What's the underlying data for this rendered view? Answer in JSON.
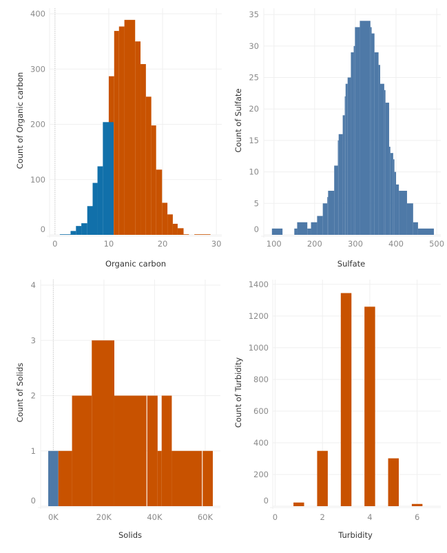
{
  "colors": {
    "orange": "#c85200",
    "blue": "#1170aa",
    "steel": "#4e79a7",
    "grid": "#efefef"
  },
  "chart_data": [
    {
      "type": "bar",
      "subtype": "histogram",
      "xlabel": "Organic carbon",
      "ylabel": "Count of Organic carbon",
      "xlim": [
        -1,
        31
      ],
      "ylim": [
        0,
        410
      ],
      "x_ticks": [
        0,
        10,
        20,
        30
      ],
      "x_tick_labels": [
        "0",
        "10",
        "20",
        "30"
      ],
      "y_ticks": [
        0,
        100,
        200,
        300,
        400
      ],
      "y_tick_labels": [
        "0",
        "100",
        "200",
        "300",
        "400"
      ],
      "grid": true,
      "zero_reference_line": true,
      "bins": [
        {
          "from": 10,
          "to": 11,
          "count": 287,
          "color": "orange"
        },
        {
          "from": 11,
          "to": 11.9,
          "count": 369,
          "color": "orange"
        },
        {
          "from": 11.9,
          "to": 12.9,
          "count": 377,
          "color": "orange"
        },
        {
          "from": 12.9,
          "to": 14.9,
          "count": 389,
          "color": "orange"
        },
        {
          "from": 14.9,
          "to": 15.9,
          "count": 350,
          "color": "orange"
        },
        {
          "from": 15.9,
          "to": 16.9,
          "count": 309,
          "color": "orange"
        },
        {
          "from": 16.9,
          "to": 17.9,
          "count": 250,
          "color": "orange"
        },
        {
          "from": 17.9,
          "to": 18.8,
          "count": 198,
          "color": "orange"
        },
        {
          "from": 18.8,
          "to": 19.9,
          "count": 118,
          "color": "orange"
        },
        {
          "from": 19.9,
          "to": 20.9,
          "count": 58,
          "color": "orange"
        },
        {
          "from": 20.9,
          "to": 21.9,
          "count": 37,
          "color": "orange"
        },
        {
          "from": 21.9,
          "to": 22.8,
          "count": 20,
          "color": "orange"
        },
        {
          "from": 22.8,
          "to": 23.9,
          "count": 12,
          "color": "orange"
        },
        {
          "from": 23.9,
          "to": 24.9,
          "count": 1,
          "color": "orange"
        },
        {
          "from": 25.9,
          "to": 28.9,
          "count": 1,
          "color": "orange"
        },
        {
          "from": 0.9,
          "to": 2.9,
          "count": 1,
          "color": "blue"
        },
        {
          "from": 2.9,
          "to": 3.9,
          "count": 7,
          "color": "blue"
        },
        {
          "from": 3.9,
          "to": 4.9,
          "count": 16,
          "color": "blue"
        },
        {
          "from": 4.9,
          "to": 6,
          "count": 21,
          "color": "blue"
        },
        {
          "from": 6,
          "to": 7,
          "count": 52,
          "color": "blue"
        },
        {
          "from": 7,
          "to": 7.9,
          "count": 94,
          "color": "blue"
        },
        {
          "from": 7.9,
          "to": 8.9,
          "count": 124,
          "color": "blue"
        },
        {
          "from": 8.9,
          "to": 10.9,
          "count": 204,
          "color": "blue"
        }
      ]
    },
    {
      "type": "bar",
      "subtype": "histogram",
      "xlabel": "Sulfate",
      "ylabel": "Count of Sulfate",
      "xlim": [
        75,
        510
      ],
      "ylim": [
        0,
        36
      ],
      "x_ticks": [
        100,
        200,
        300,
        400,
        500
      ],
      "x_tick_labels": [
        "100",
        "200",
        "300",
        "400",
        "500"
      ],
      "y_ticks": [
        0,
        5,
        10,
        15,
        20,
        25,
        30,
        35
      ],
      "y_tick_labels": [
        "0",
        "5",
        "10",
        "15",
        "20",
        "25",
        "30",
        "35"
      ],
      "grid": true,
      "bins": [
        {
          "from": 95,
          "to": 121,
          "count": 1,
          "color": "steel"
        },
        {
          "from": 150,
          "to": 157,
          "count": 1,
          "color": "steel"
        },
        {
          "from": 157,
          "to": 182,
          "count": 2,
          "color": "steel"
        },
        {
          "from": 182,
          "to": 191,
          "count": 1,
          "color": "steel"
        },
        {
          "from": 191,
          "to": 206,
          "count": 2,
          "color": "steel"
        },
        {
          "from": 206,
          "to": 220,
          "count": 3,
          "color": "steel"
        },
        {
          "from": 220,
          "to": 231,
          "count": 5,
          "color": "steel"
        },
        {
          "from": 231,
          "to": 233,
          "count": 6,
          "color": "steel"
        },
        {
          "from": 233,
          "to": 248,
          "count": 7,
          "color": "steel"
        },
        {
          "from": 248,
          "to": 257,
          "count": 11,
          "color": "steel"
        },
        {
          "from": 257,
          "to": 259,
          "count": 15,
          "color": "steel"
        },
        {
          "from": 259,
          "to": 269,
          "count": 16,
          "color": "steel"
        },
        {
          "from": 269,
          "to": 274,
          "count": 19,
          "color": "steel"
        },
        {
          "from": 274,
          "to": 276,
          "count": 22,
          "color": "steel"
        },
        {
          "from": 276,
          "to": 281,
          "count": 24,
          "color": "steel"
        },
        {
          "from": 281,
          "to": 289,
          "count": 25,
          "color": "steel"
        },
        {
          "from": 289,
          "to": 296,
          "count": 29,
          "color": "steel"
        },
        {
          "from": 296,
          "to": 299,
          "count": 30,
          "color": "steel"
        },
        {
          "from": 299,
          "to": 311,
          "count": 33,
          "color": "steel"
        },
        {
          "from": 311,
          "to": 337,
          "count": 34,
          "color": "steel"
        },
        {
          "from": 337,
          "to": 340,
          "count": 33,
          "color": "steel"
        },
        {
          "from": 340,
          "to": 347,
          "count": 32,
          "color": "steel"
        },
        {
          "from": 347,
          "to": 357,
          "count": 29,
          "color": "steel"
        },
        {
          "from": 357,
          "to": 361,
          "count": 27,
          "color": "steel"
        },
        {
          "from": 361,
          "to": 371,
          "count": 24,
          "color": "steel"
        },
        {
          "from": 371,
          "to": 374,
          "count": 23,
          "color": "steel"
        },
        {
          "from": 374,
          "to": 383,
          "count": 21,
          "color": "steel"
        },
        {
          "from": 383,
          "to": 386,
          "count": 14,
          "color": "steel"
        },
        {
          "from": 386,
          "to": 393,
          "count": 13,
          "color": "steel"
        },
        {
          "from": 393,
          "to": 396,
          "count": 12,
          "color": "steel"
        },
        {
          "from": 396,
          "to": 400,
          "count": 10,
          "color": "steel"
        },
        {
          "from": 400,
          "to": 407,
          "count": 8,
          "color": "steel"
        },
        {
          "from": 407,
          "to": 427,
          "count": 7,
          "color": "steel"
        },
        {
          "from": 427,
          "to": 442,
          "count": 5,
          "color": "steel"
        },
        {
          "from": 442,
          "to": 454,
          "count": 2,
          "color": "steel"
        },
        {
          "from": 454,
          "to": 493,
          "count": 1,
          "color": "steel"
        }
      ]
    },
    {
      "type": "bar",
      "subtype": "histogram",
      "xlabel": "Solids",
      "ylabel": "Count of Solids",
      "xlim": [
        -5000,
        66000
      ],
      "ylim": [
        0,
        4.1
      ],
      "x_ticks": [
        0,
        20000,
        40000,
        60000
      ],
      "x_tick_labels": [
        "0K",
        "20K",
        "40K",
        "60K"
      ],
      "y_ticks": [
        0,
        1,
        2,
        3,
        4
      ],
      "y_tick_labels": [
        "0",
        "1",
        "2",
        "3",
        "4"
      ],
      "grid": true,
      "zero_reference_line": true,
      "bins": [
        {
          "from": -2000,
          "to": 2000,
          "count": 1,
          "color": "steel"
        },
        {
          "from": 2000,
          "to": 7400,
          "count": 1,
          "color": "orange"
        },
        {
          "from": 7400,
          "to": 15200,
          "count": 2,
          "color": "orange"
        },
        {
          "from": 15200,
          "to": 24100,
          "count": 3,
          "color": "orange"
        },
        {
          "from": 24100,
          "to": 36800,
          "count": 2,
          "color": "orange"
        },
        {
          "from": 37100,
          "to": 41200,
          "count": 2,
          "color": "orange"
        },
        {
          "from": 41200,
          "to": 42800,
          "count": 1,
          "color": "orange"
        },
        {
          "from": 42800,
          "to": 46800,
          "count": 2,
          "color": "orange"
        },
        {
          "from": 46800,
          "to": 58700,
          "count": 1,
          "color": "orange"
        },
        {
          "from": 59000,
          "to": 63000,
          "count": 1,
          "color": "orange"
        }
      ]
    },
    {
      "type": "bar",
      "xlabel": "Turbidity",
      "ylabel": "Count of Turbidity",
      "xlim": [
        -0.1,
        7
      ],
      "ylim": [
        0,
        1430
      ],
      "x_ticks": [
        0,
        2,
        4,
        6
      ],
      "x_tick_labels": [
        "0",
        "2",
        "4",
        "6"
      ],
      "y_ticks": [
        0,
        200,
        400,
        600,
        800,
        1000,
        1200,
        1400
      ],
      "y_tick_labels": [
        "0",
        "200",
        "400",
        "600",
        "800",
        "1000",
        "1200",
        "1400"
      ],
      "grid": true,
      "categories": [
        1,
        2,
        3,
        4,
        5,
        6
      ],
      "values": [
        23,
        349,
        1345,
        1259,
        302,
        14
      ],
      "color": "orange"
    }
  ]
}
